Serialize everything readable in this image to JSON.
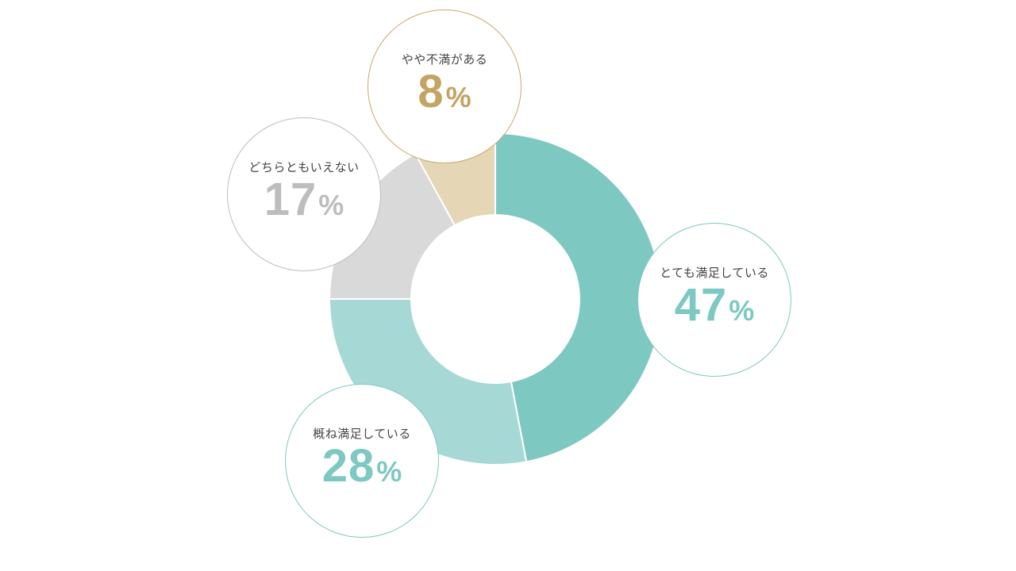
{
  "colors": {
    "background": "#ffffff"
  },
  "chart_data": {
    "type": "pie",
    "title": "",
    "unit": "%",
    "categories": [
      "とても満足している",
      "概ね満足している",
      "どちらともいえない",
      "やや不満がある"
    ],
    "values": [
      47,
      28,
      17,
      8
    ],
    "slice_colors": [
      "#7ec8c2",
      "#a6d9d5",
      "#d9d9d9",
      "#e5d6b5"
    ],
    "value_colors": [
      "#7ec8c2",
      "#7ec8c2",
      "#bdbdbd",
      "#c4a462"
    ],
    "border_colors": [
      "#7ec8c2",
      "#7ec8c2",
      "#bdbdbd",
      "#c9a96a"
    ],
    "labels": [
      {
        "text": "とても満足している",
        "value": "47",
        "unit": "%"
      },
      {
        "text": "概ね満足している",
        "value": "28",
        "unit": "%"
      },
      {
        "text": "どちらともいえない",
        "value": "17",
        "unit": "%"
      },
      {
        "text": "やや不満がある",
        "value": "8",
        "unit": "%"
      }
    ],
    "hole": "donut",
    "legend": "none"
  }
}
